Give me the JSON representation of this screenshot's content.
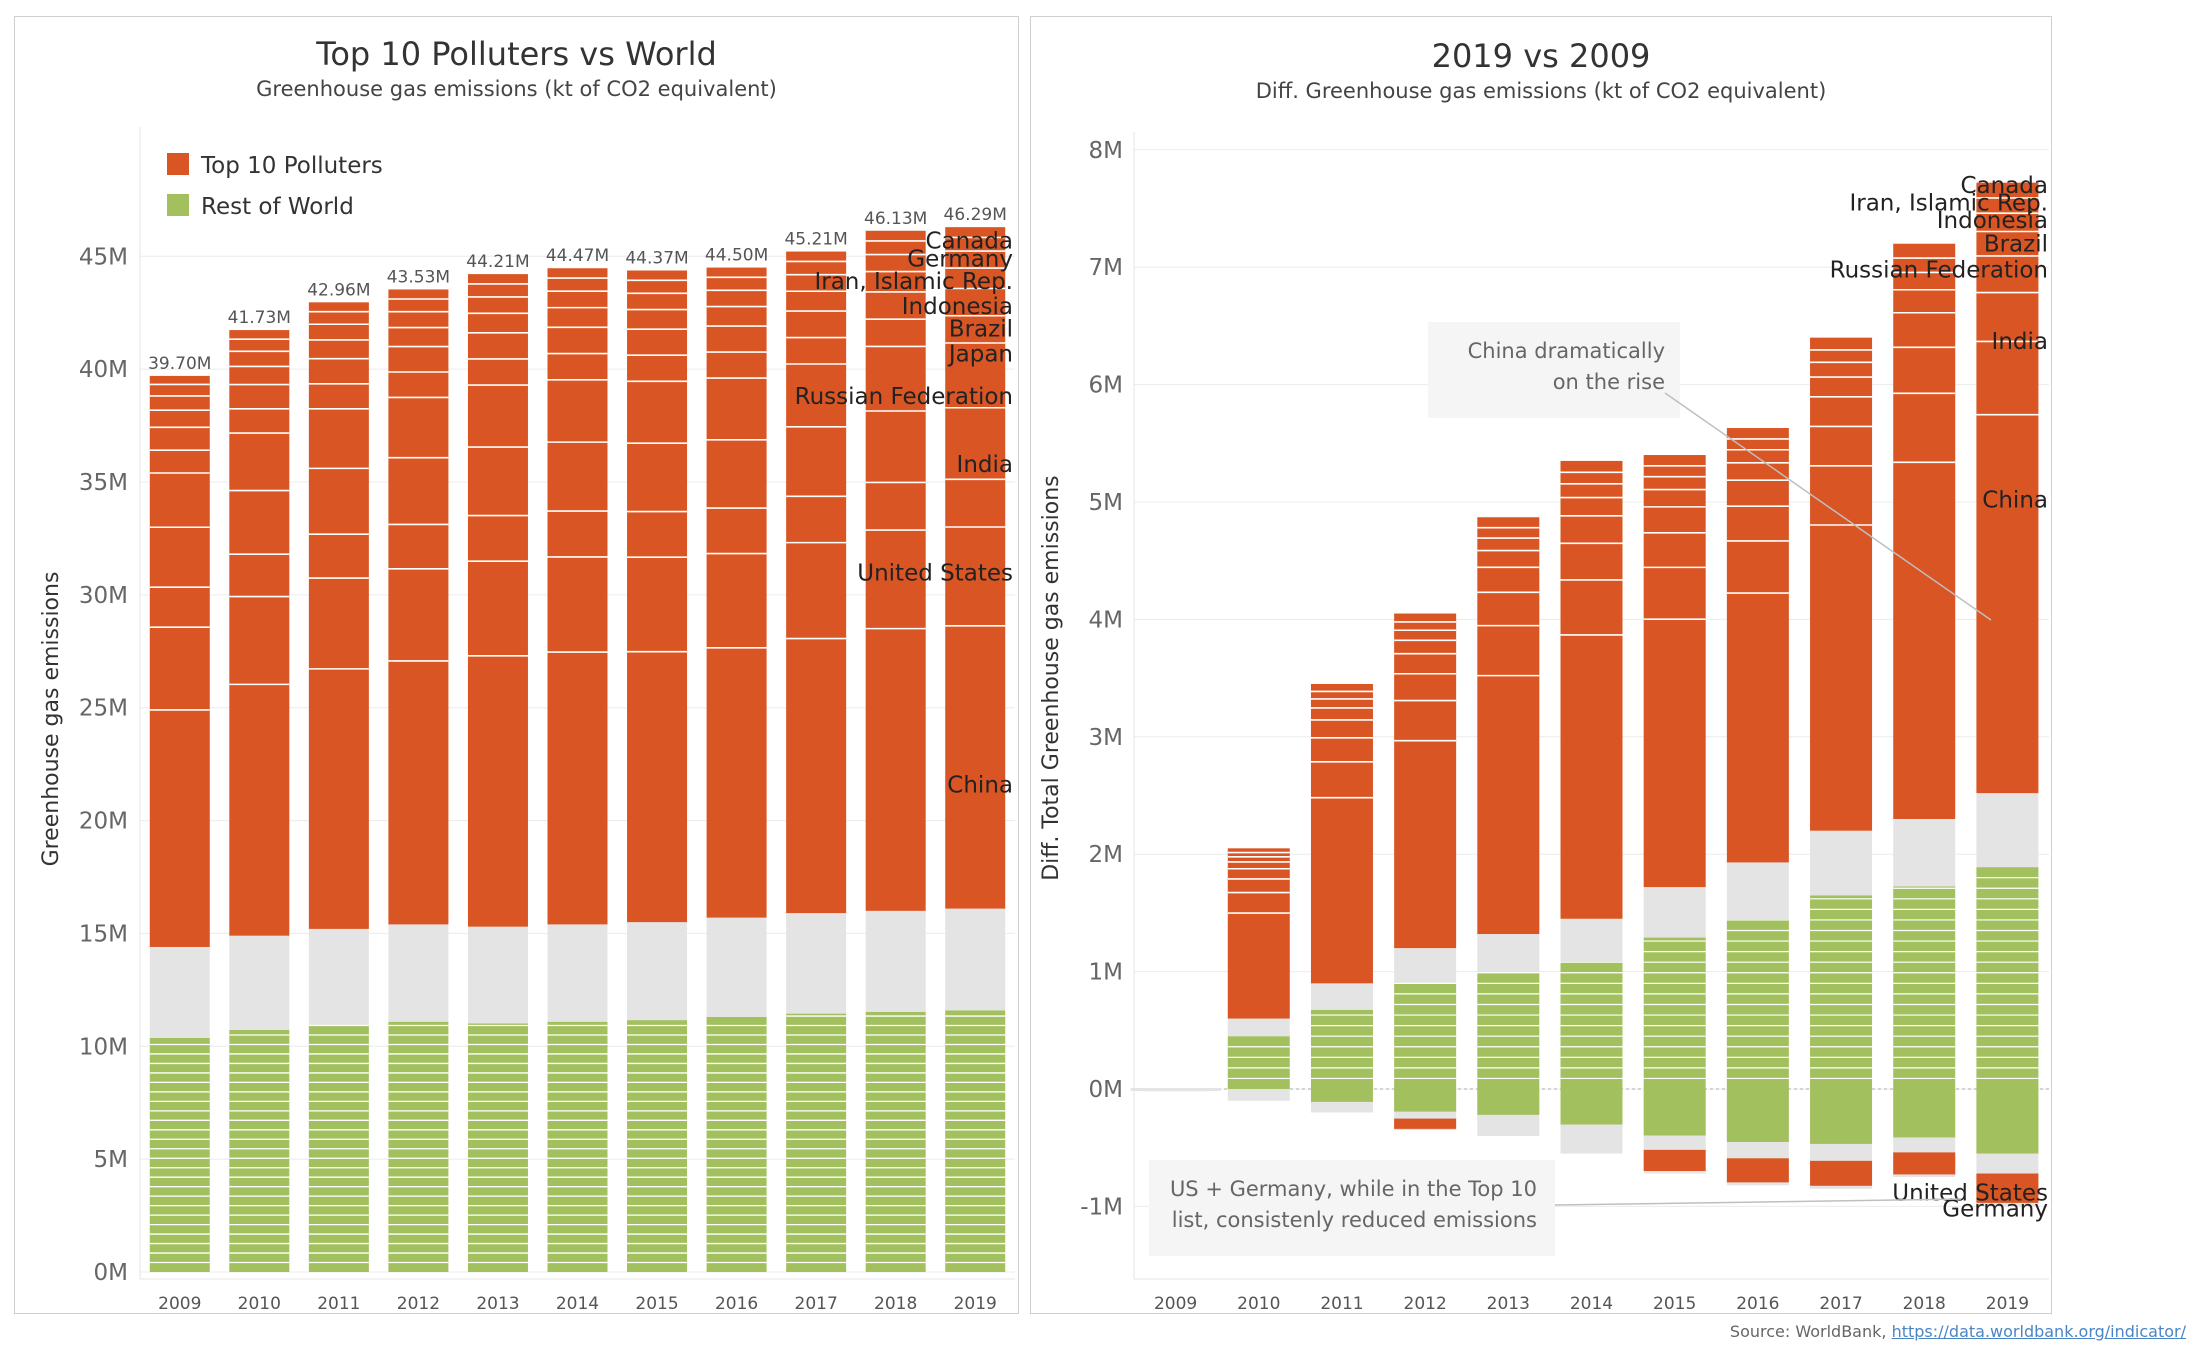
{
  "colors": {
    "top10": "#d95523",
    "rest_green": "#a3c05f",
    "rest_gray": "#e4e4e4",
    "axis_text": "#666666"
  },
  "source": {
    "prefix": "Source: WorldBank, ",
    "link": "https://data.worldbank.org/indicator/"
  },
  "chart_data": [
    {
      "type": "bar",
      "title": "Top 10 Polluters vs World",
      "subtitle": "Greenhouse gas emissions (kt of CO2 equivalent)",
      "ylabel": "Greenhouse gas emissions",
      "xlabel": "",
      "ylim": [
        0,
        49
      ],
      "yticks": [
        0,
        5,
        10,
        15,
        20,
        25,
        30,
        35,
        40,
        45
      ],
      "ytick_labels": [
        "0M",
        "5M",
        "10M",
        "15M",
        "20M",
        "25M",
        "30M",
        "35M",
        "40M",
        "45M"
      ],
      "unit": "M",
      "grid": true,
      "legend": {
        "position": "top-left",
        "items": [
          {
            "name": "Top 10 Polluters",
            "color": "#d95523"
          },
          {
            "name": "Rest of World",
            "color": "#a3c05f"
          }
        ]
      },
      "categories": [
        "2009",
        "2010",
        "2011",
        "2012",
        "2013",
        "2014",
        "2015",
        "2016",
        "2017",
        "2018",
        "2019"
      ],
      "totals": [
        39.7,
        41.73,
        42.96,
        43.53,
        44.21,
        44.47,
        44.37,
        44.5,
        45.21,
        46.13,
        46.29
      ],
      "total_labels": [
        "39.70M",
        "41.73M",
        "42.96M",
        "43.53M",
        "44.21M",
        "44.47M",
        "44.37M",
        "44.50M",
        "45.21M",
        "46.13M",
        "46.29M"
      ],
      "series": [
        {
          "name": "Rest of World",
          "values": [
            14.4,
            14.9,
            15.2,
            15.4,
            15.3,
            15.4,
            15.5,
            15.7,
            15.9,
            16.0,
            16.1
          ]
        },
        {
          "name": "Top 10 Polluters",
          "values": [
            25.3,
            26.8,
            27.8,
            28.1,
            28.9,
            29.1,
            28.9,
            28.8,
            29.3,
            30.1,
            30.2
          ]
        }
      ],
      "country_labels": [
        {
          "text": "Canada",
          "y": 45.7
        },
        {
          "text": "Germany",
          "y": 44.9
        },
        {
          "text": "Iran, Islamic Rep.",
          "y": 43.9
        },
        {
          "text": "Indonesia",
          "y": 42.8
        },
        {
          "text": "Brazil",
          "y": 41.8
        },
        {
          "text": "Japan",
          "y": 40.7
        },
        {
          "text": "Russian Federation",
          "y": 38.8
        },
        {
          "text": "India",
          "y": 35.8
        },
        {
          "text": "United States",
          "y": 31.0
        },
        {
          "text": "China",
          "y": 21.6
        }
      ]
    },
    {
      "type": "bar",
      "title": "2019 vs 2009",
      "subtitle": "Diff. Greenhouse gas emissions (kt of CO2 equivalent)",
      "ylabel": "Diff. Total Greenhouse gas emissions",
      "xlabel": "",
      "ylim": [
        -1.5,
        8.1
      ],
      "yticks": [
        -1,
        0,
        1,
        2,
        3,
        4,
        5,
        6,
        7,
        8
      ],
      "ytick_labels": [
        "-1M",
        "0M",
        "1M",
        "2M",
        "3M",
        "4M",
        "5M",
        "6M",
        "7M",
        "8M"
      ],
      "unit": "M",
      "grid": true,
      "categories": [
        "2009",
        "2010",
        "2011",
        "2012",
        "2013",
        "2014",
        "2015",
        "2016",
        "2017",
        "2018",
        "2019"
      ],
      "series": [
        {
          "name": "Top 10 Polluters",
          "values": [
            0,
            1.45,
            2.55,
            2.85,
            3.55,
            3.9,
            3.68,
            3.7,
            4.2,
            4.9,
            5.2
          ]
        },
        {
          "name": "Rest of World",
          "values": [
            0,
            0.6,
            0.9,
            1.2,
            1.32,
            1.45,
            1.72,
            1.93,
            2.2,
            2.3,
            2.52
          ]
        },
        {
          "name": "Negative",
          "values": [
            -0.02,
            -0.1,
            -0.2,
            -0.35,
            -0.4,
            -0.55,
            -0.72,
            -0.82,
            -0.85,
            -0.75,
            -1.0
          ]
        }
      ],
      "country_labels": [
        {
          "text": "Canada",
          "y": 7.7
        },
        {
          "text": "Iran, Islamic Rep.",
          "y": 7.55
        },
        {
          "text": "Indonesia",
          "y": 7.4
        },
        {
          "text": "Brazil",
          "y": 7.2
        },
        {
          "text": "Russian Federation",
          "y": 6.98
        },
        {
          "text": "India",
          "y": 6.37
        },
        {
          "text": "China",
          "y": 5.02
        },
        {
          "text": "United States",
          "y": -0.88
        },
        {
          "text": "Germany",
          "y": -1.02
        }
      ],
      "annotations": [
        {
          "lines": [
            "China dramatically",
            "on the rise"
          ]
        },
        {
          "lines": [
            "US + Germany, while in the Top 10",
            "list, consistenly reduced emissions"
          ]
        }
      ]
    }
  ]
}
